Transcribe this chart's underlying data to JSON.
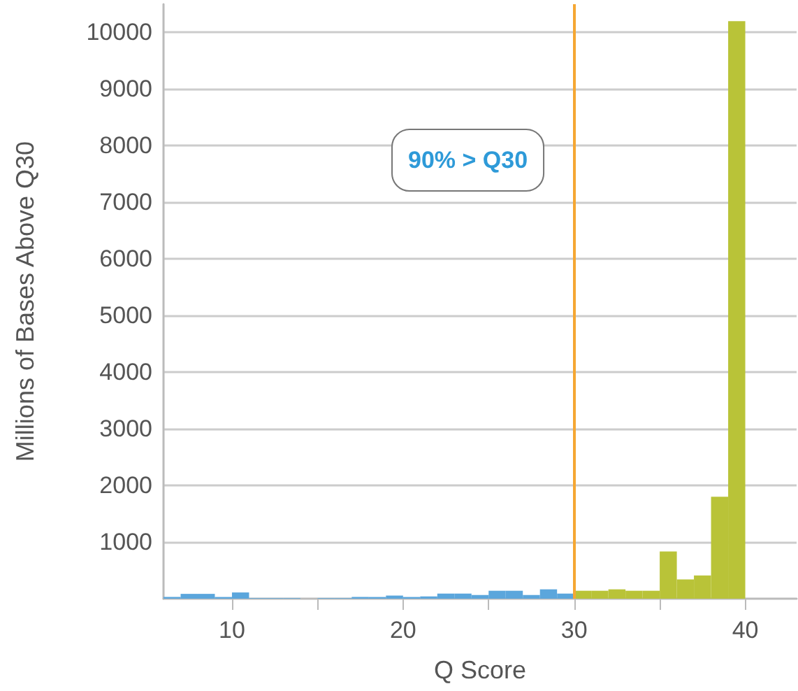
{
  "chart_data": {
    "type": "histogram",
    "xlabel": "Q Score",
    "ylabel": "Millions of Bases Above Q30",
    "bins": [
      6,
      7,
      8,
      9,
      10,
      11,
      12,
      13,
      14,
      15,
      16,
      17,
      18,
      19,
      20,
      21,
      22,
      23,
      24,
      25,
      26,
      27,
      28,
      29,
      30,
      31,
      32,
      33,
      34,
      35,
      36,
      37,
      38,
      39,
      40
    ],
    "values": [
      30,
      85,
      85,
      30,
      110,
      10,
      10,
      10,
      0,
      10,
      10,
      30,
      30,
      55,
      30,
      40,
      90,
      90,
      65,
      140,
      140,
      65,
      165,
      90,
      140,
      140,
      165,
      140,
      140,
      835,
      340,
      410,
      1800,
      10200
    ],
    "colors": [
      "#5ba6dc",
      "#5ba6dc",
      "#5ba6dc",
      "#5ba6dc",
      "#5ba6dc",
      "#5ba6dc",
      "#5ba6dc",
      "#5ba6dc",
      "#5ba6dc",
      "#5ba6dc",
      "#5ba6dc",
      "#5ba6dc",
      "#5ba6dc",
      "#5ba6dc",
      "#5ba6dc",
      "#5ba6dc",
      "#5ba6dc",
      "#5ba6dc",
      "#5ba6dc",
      "#5ba6dc",
      "#5ba6dc",
      "#5ba6dc",
      "#5ba6dc",
      "#5ba6dc",
      "#b9c338",
      "#b9c338",
      "#b9c338",
      "#b9c338",
      "#b9c338",
      "#b9c338",
      "#b9c338",
      "#b9c338",
      "#b9c338",
      "#b9c338"
    ],
    "xlim": [
      6,
      43
    ],
    "xticks": [
      10,
      {
        "value": 15,
        "label": null
      },
      20,
      {
        "value": 25,
        "label": null
      },
      30,
      {
        "value": 35,
        "label": null
      },
      40
    ],
    "ylim": [
      0,
      10500
    ],
    "yticks": [
      1000,
      2000,
      3000,
      4000,
      5000,
      6000,
      7000,
      8000,
      9000,
      10000
    ],
    "grid": "y",
    "ref_lines": [
      {
        "axis": "x",
        "value": 30,
        "label": null,
        "color": "#f5a733"
      }
    ],
    "annotations": [
      "90% > Q30"
    ]
  }
}
